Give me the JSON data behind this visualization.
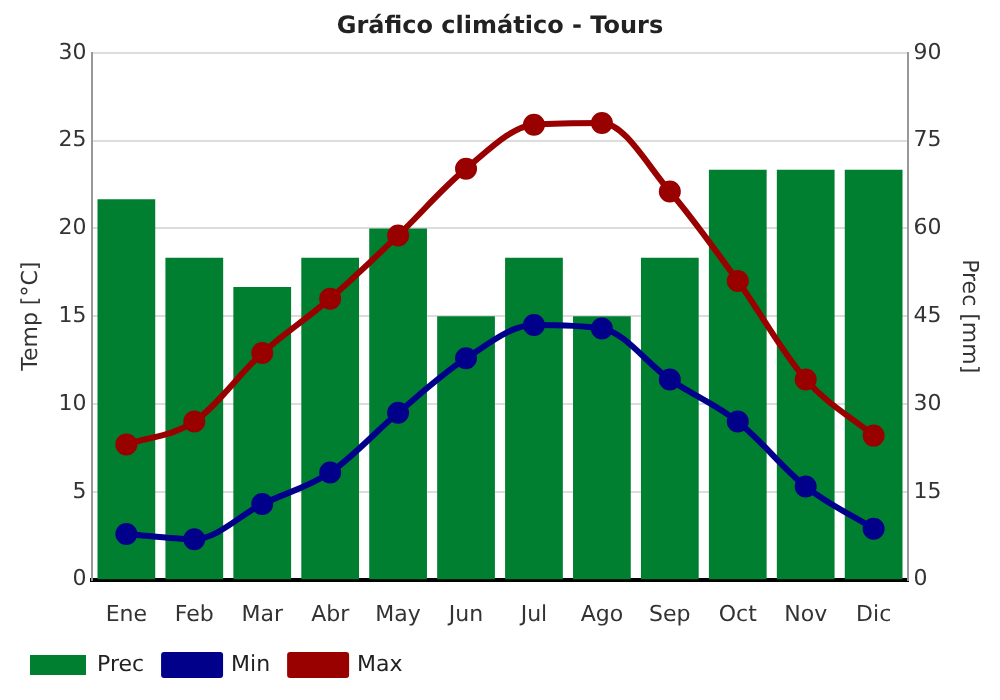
{
  "chart_data": {
    "type": "bar",
    "title": "Gráfico climático - Tours",
    "ylabel": "Temp [°C]",
    "y2label": "Prec [mm]",
    "categories": [
      "Ene",
      "Feb",
      "Mar",
      "Abr",
      "May",
      "Jun",
      "Jul",
      "Ago",
      "Sep",
      "Oct",
      "Nov",
      "Dic"
    ],
    "series": [
      {
        "name": "Prec",
        "axis": "y2",
        "color": "#007f30",
        "values": [
          65,
          55,
          50,
          55,
          60,
          45,
          55,
          45,
          55,
          70,
          70,
          70
        ]
      },
      {
        "name": "Min",
        "type": "line",
        "color": "#00008b",
        "values": [
          2.6,
          2.3,
          4.3,
          6.1,
          9.5,
          12.6,
          14.5,
          14.3,
          11.4,
          9.0,
          5.3,
          2.9
        ]
      },
      {
        "name": "Max",
        "type": "line",
        "color": "#990000",
        "values": [
          7.7,
          9.0,
          12.9,
          16.0,
          19.6,
          23.4,
          25.9,
          26.0,
          22.1,
          17.0,
          11.4,
          8.2
        ]
      }
    ],
    "ylim": [
      0,
      30
    ],
    "yticks": [
      0,
      5,
      10,
      15,
      20,
      25,
      30
    ],
    "y2lim": [
      0,
      90
    ],
    "y2ticks": [
      0,
      15,
      30,
      45,
      60,
      75,
      90
    ],
    "grid": "y",
    "legend": "bottom",
    "marker": "circle"
  }
}
